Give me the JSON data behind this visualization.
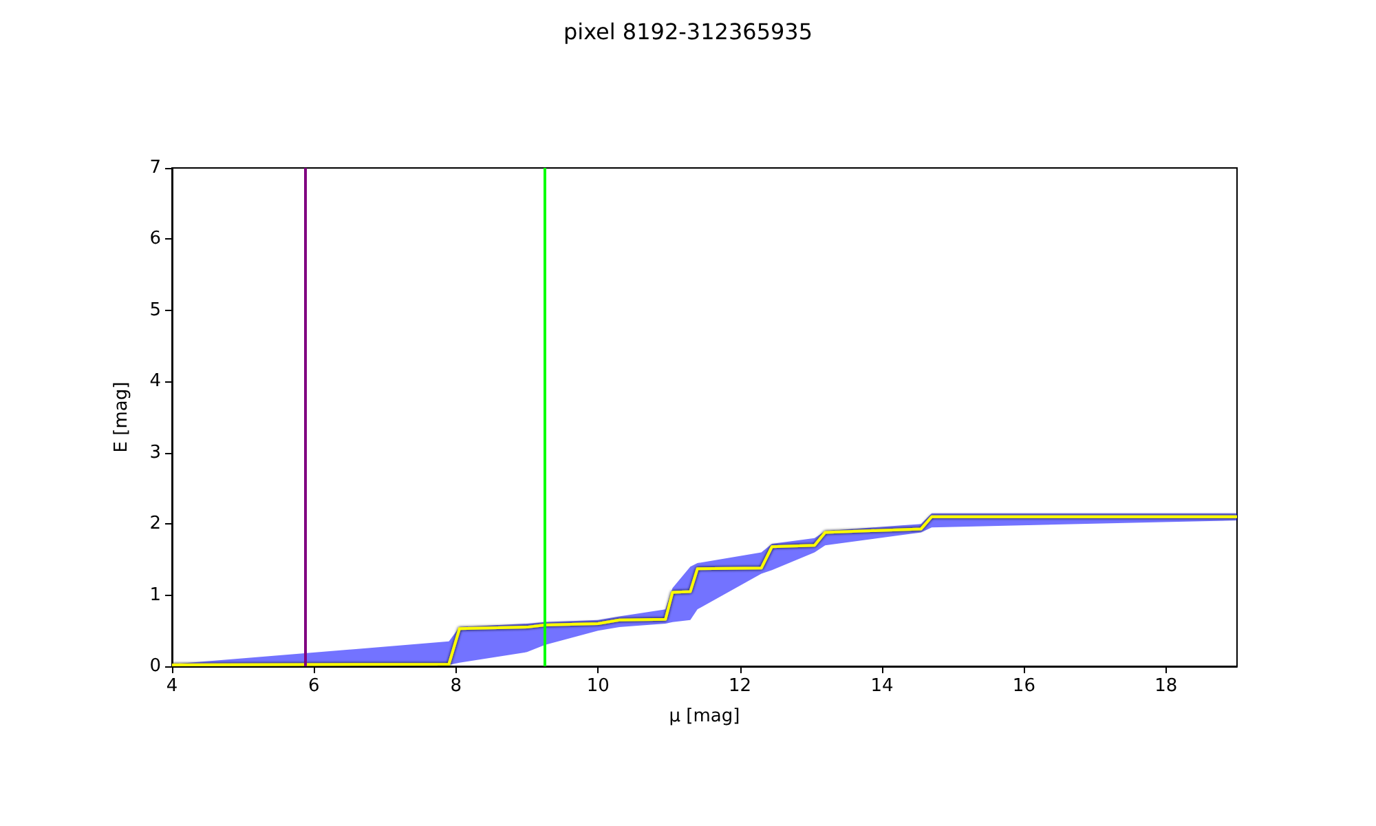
{
  "chart_data": {
    "type": "line",
    "title": "pixel 8192-312365935",
    "xlabel": "μ [mag]",
    "ylabel": "E [mag]",
    "xlim": [
      4,
      19
    ],
    "xticks": [
      4,
      6,
      8,
      10,
      12,
      14,
      16,
      18
    ],
    "ylim": [
      0,
      7
    ],
    "yticks": [
      0,
      1,
      2,
      3,
      4,
      5,
      6,
      7
    ],
    "grid": false,
    "series": [
      {
        "color": "#ffff00",
        "x": [
          4,
          7.9,
          8.05,
          9,
          9.25,
          10,
          10.3,
          10.95,
          11.05,
          11.3,
          11.4,
          12.3,
          12.45,
          13.05,
          13.2,
          14.55,
          14.7,
          19
        ],
        "values": [
          0.02,
          0.03,
          0.53,
          0.55,
          0.58,
          0.6,
          0.65,
          0.66,
          1.04,
          1.05,
          1.37,
          1.38,
          1.68,
          1.7,
          1.88,
          1.93,
          2.1,
          2.1
        ],
        "lower": [
          0,
          0.02,
          0.05,
          0.2,
          0.3,
          0.5,
          0.55,
          0.6,
          0.62,
          0.65,
          0.8,
          1.3,
          1.35,
          1.6,
          1.7,
          1.88,
          1.95,
          2.05
        ],
        "upper": [
          0.03,
          0.35,
          0.55,
          0.6,
          0.62,
          0.65,
          0.7,
          0.8,
          1.1,
          1.4,
          1.45,
          1.6,
          1.72,
          1.8,
          1.9,
          2.0,
          2.15,
          2.15
        ]
      }
    ],
    "ref_lines": [
      {
        "axis": "x",
        "value": 5.88,
        "color": "#800080"
      },
      {
        "axis": "x",
        "value": 9.25,
        "color": "#00ff00"
      }
    ]
  }
}
